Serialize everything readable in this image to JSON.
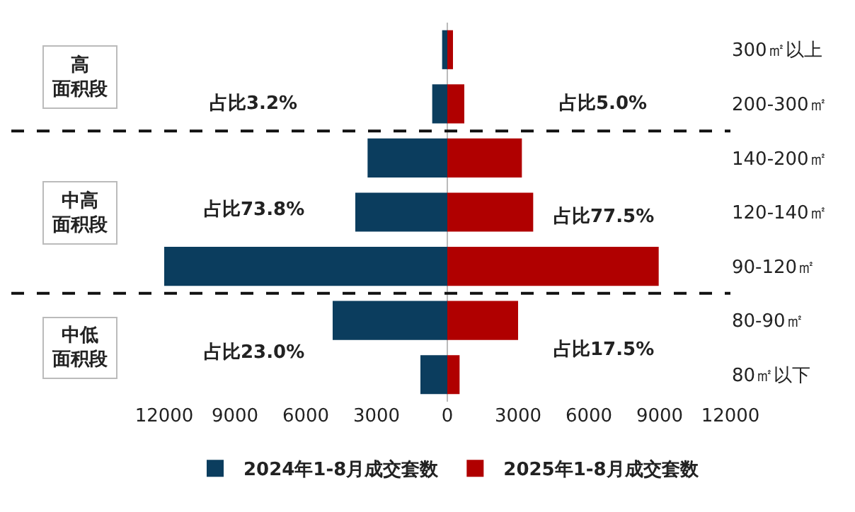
{
  "chart_data": {
    "type": "bar",
    "orientation": "horizontal",
    "categories": [
      "300㎡以上",
      "200-300㎡",
      "140-200㎡",
      "120-140㎡",
      "90-120㎡",
      "80-90㎡",
      "80㎡以下"
    ],
    "series": [
      {
        "name": "2024年1-8月成交套数",
        "color": "#0b3d5e",
        "values": [
          -220,
          -640,
          -3380,
          -3900,
          -12000,
          -4860,
          -1140
        ]
      },
      {
        "name": "2025年1-8月成交套数",
        "color": "#b00000",
        "values": [
          240,
          720,
          3160,
          3640,
          8960,
          3000,
          520
        ]
      }
    ],
    "xlim": [
      -12000,
      12000
    ],
    "xticks": [
      {
        "value": -12000,
        "label": "12000"
      },
      {
        "value": -9000,
        "label": "9000"
      },
      {
        "value": -6000,
        "label": "6000"
      },
      {
        "value": -3000,
        "label": "3000"
      },
      0,
      3000,
      6000,
      9000,
      12000
    ],
    "grid": false,
    "legend": "bottom",
    "stacked": true,
    "annotations": [
      "高面积段",
      "占比3.2%",
      "占比5.0%",
      "中高面积段",
      "占比73.8%",
      "占比77.5%",
      "中低面积段",
      "占比23.0%",
      "占比17.5%"
    ]
  }
}
